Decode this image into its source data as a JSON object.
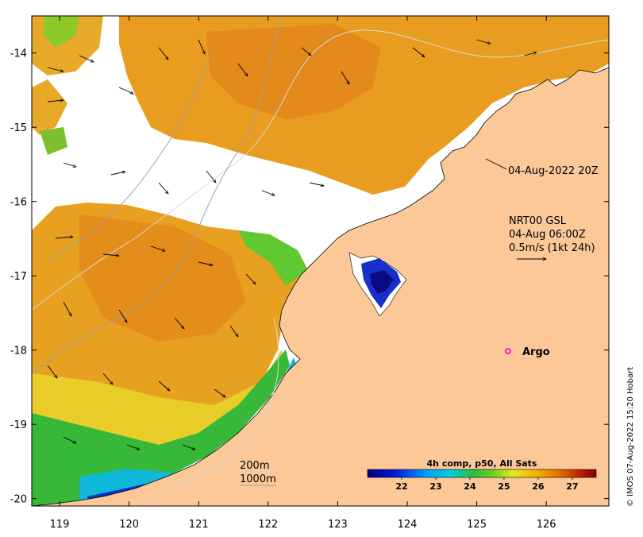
{
  "map": {
    "lon_ticks": [
      "119",
      "120",
      "121",
      "122",
      "123",
      "124",
      "125",
      "126"
    ],
    "lat_ticks": [
      "-14",
      "-15",
      "-16",
      "-17",
      "-18",
      "-19",
      "-20"
    ],
    "lon_range": [
      118.6,
      126.9
    ],
    "lat_range": [
      -20.1,
      -13.5
    ]
  },
  "annotations": {
    "timestamp": "04-Aug-2022 20Z",
    "current_source": "NRT00 GSL",
    "current_time": "04-Aug 06:00Z",
    "arrow_scale": "0.5m/s (1kt 24h)",
    "argo": "Argo",
    "contour_200": "200m",
    "contour_1000": "1000m"
  },
  "colorbar": {
    "title": "4h comp, p50, All Sats",
    "ticks": [
      "22",
      "23",
      "24",
      "25",
      "26",
      "27"
    ],
    "range": [
      21.0,
      27.7
    ]
  },
  "credit": "© IMOS 07-Aug-2022 15:20 Hobart",
  "colors": {
    "land": "#fcc898",
    "argo": "#e000e0",
    "contour_200": "#d8d8d8",
    "contour_1000": "#a0a0a0"
  }
}
